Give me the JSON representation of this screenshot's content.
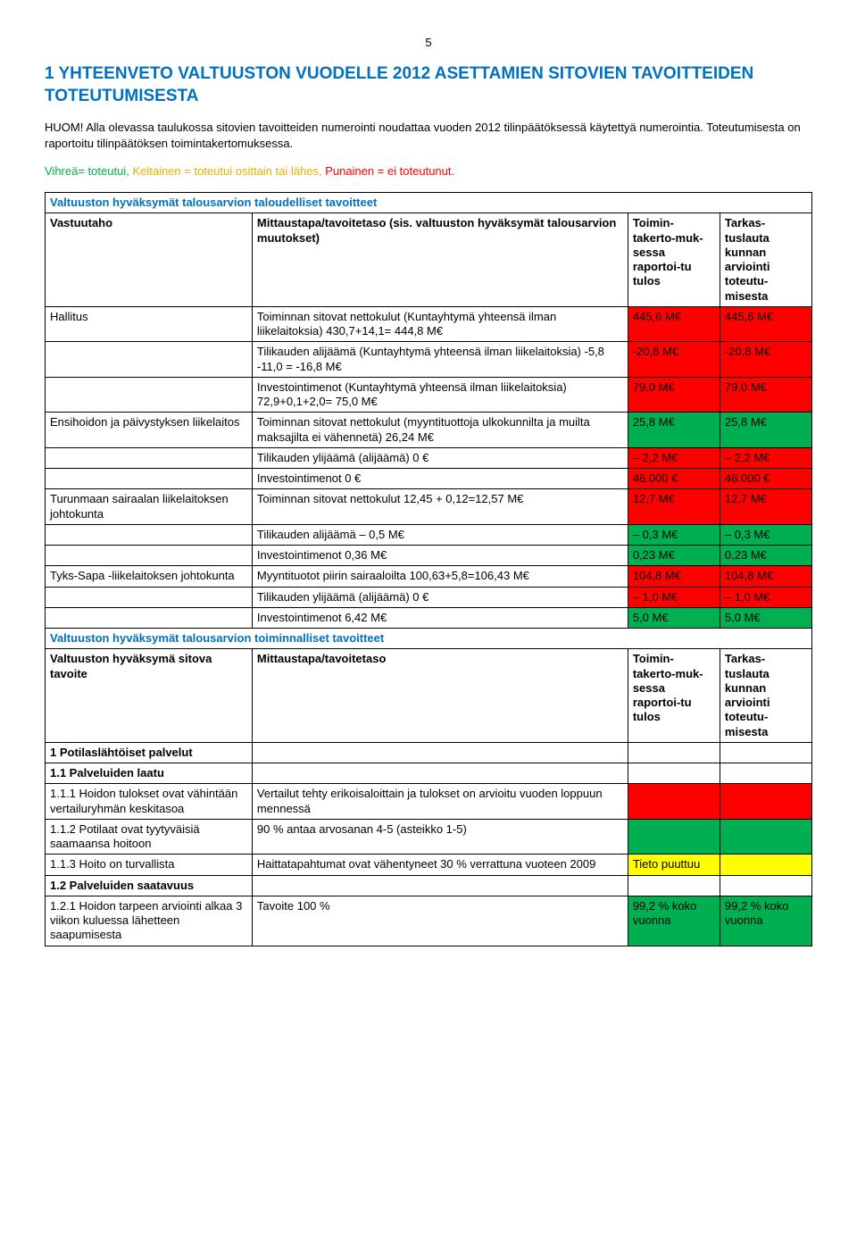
{
  "page_number": "5",
  "title": "1 YHTEENVETO VALTUUSTON VUODELLE 2012 ASETTAMIEN SITOVIEN TAVOITTEIDEN TOTEUTUMISESTA",
  "intro": "HUOM! Alla olevassa taulukossa sitovien tavoitteiden numerointi noudattaa vuoden 2012 tilinpäätöksessä käytettyä numerointia. Toteutumisesta on raportoitu tilinpäätöksen toimintakertomuksessa.",
  "legend": {
    "green_label": "Vihreä= toteutui,",
    "yellow_label": "Keltainen = toteutui osittain tai lähes,",
    "red_label": "Punainen = ei toteutunut."
  },
  "colors": {
    "heading_blue": "#0070c0",
    "red": "#ff0000",
    "green": "#00b050",
    "yellow": "#ffff00",
    "green_text": "#00b050",
    "yellow_text": "#e8b000"
  },
  "section1_title": "Valtuuston hyväksymät talousarvion taloudelliset tavoitteet",
  "header1": {
    "col1": "Vastuutaho",
    "col2": "Mittaustapa/tavoitetaso\n(sis. valtuuston hyväksymät talousarvion muutokset)",
    "col3": "Toimin-takerto-muk-sessa raportoi-tu tulos",
    "col4": "Tarkas-tuslauta kunnan arviointi toteutu-misesta"
  },
  "rows1": [
    {
      "c1": "Hallitus",
      "c2": "Toiminnan sitovat nettokulut (Kuntayhtymä yhteensä ilman liikelaitoksia) 430,7+14,1= 444,8 M€",
      "c3": "445,6 M€",
      "c4": "445,6 M€",
      "bg3": "#ff0000",
      "bg4": "#ff0000"
    },
    {
      "c1": "",
      "c2": "Tilikauden alijäämä (Kuntayhtymä yhteensä ilman liikelaitoksia) -5,8 -11,0 = -16,8 M€",
      "c3": "-20,8 M€",
      "c4": "-20,8 M€",
      "bg3": "#ff0000",
      "bg4": "#ff0000"
    },
    {
      "c1": "",
      "c2": "Investointimenot (Kuntayhtymä yhteensä ilman liikelaitoksia) 72,9+0,1+2,0= 75,0 M€",
      "c3": "79,0 M€",
      "c4": "79,0 M€",
      "bg3": "#ff0000",
      "bg4": "#ff0000"
    },
    {
      "c1": "Ensihoidon ja päivystyksen liikelaitos",
      "c2": "Toiminnan sitovat nettokulut (myyntituottoja ulkokunnilta ja muilta maksajilta ei vähennetä) 26,24 M€",
      "c3": "25,8 M€",
      "c4": "25,8 M€",
      "bg3": "#00b050",
      "bg4": "#00b050"
    },
    {
      "c1": "",
      "c2": "Tilikauden ylijäämä (alijäämä) 0 €",
      "c3": "– 2,2 M€",
      "c4": "– 2,2 M€",
      "bg3": "#ff0000",
      "bg4": "#ff0000"
    },
    {
      "c1": "",
      "c2": "Investointimenot 0 €",
      "c3": "46.000 €",
      "c4": "46.000 €",
      "bg3": "#ff0000",
      "bg4": "#ff0000"
    },
    {
      "c1": "Turunmaan sairaalan liikelaitoksen johtokunta",
      "c2": "Toiminnan sitovat nettokulut 12,45 + 0,12=12,57 M€",
      "c3": "12,7 M€",
      "c4": "12,7 M€",
      "bg3": "#ff0000",
      "bg4": "#ff0000"
    },
    {
      "c1": "",
      "c2": "Tilikauden alijäämä – 0,5 M€",
      "c3": "– 0,3 M€",
      "c4": "– 0,3 M€",
      "bg3": "#00b050",
      "bg4": "#00b050"
    },
    {
      "c1": "",
      "c2": "Investointimenot 0,36 M€",
      "c3": "0,23 M€",
      "c4": "0,23 M€",
      "bg3": "#00b050",
      "bg4": "#00b050"
    },
    {
      "c1": "Tyks-Sapa -liikelaitoksen johtokunta",
      "c2": "Myyntituotot piirin sairaaloilta 100,63+5,8=106,43 M€",
      "c3": "104,8 M€",
      "c4": "104,8 M€",
      "bg3": "#ff0000",
      "bg4": "#ff0000"
    },
    {
      "c1": "",
      "c2": "Tilikauden ylijäämä (alijäämä) 0 €",
      "c3": "– 1,0 M€",
      "c4": "– 1,0 M€",
      "bg3": "#ff0000",
      "bg4": "#ff0000"
    },
    {
      "c1": "",
      "c2": "Investointimenot 6,42 M€",
      "c3": "5,0 M€",
      "c4": "5,0 M€",
      "bg3": "#00b050",
      "bg4": "#00b050"
    }
  ],
  "section2_title": "Valtuuston hyväksymät talousarvion toiminnalliset tavoitteet",
  "header2": {
    "col1": "Valtuuston hyväksymä sitova tavoite",
    "col2": "Mittaustapa/tavoitetaso",
    "col3": "Toimin-takerto-muk-sessa raportoi-tu tulos",
    "col4": "Tarkas-tuslauta kunnan arviointi toteutu-misesta"
  },
  "rows2": [
    {
      "c1": "1 Potilaslähtöiset palvelut",
      "bold": true,
      "solo": true
    },
    {
      "c1": "1.1 Palveluiden laatu",
      "bold": true,
      "solo": true
    },
    {
      "c1": "1.1.1 Hoidon tulokset ovat vähintään vertailuryhmän keskitasoa",
      "c2": "Vertailut tehty erikoisaloittain ja tulokset on arvioitu vuoden loppuun mennessä",
      "c3": "",
      "c4": "",
      "bg3": "#ff0000",
      "bg4": "#ff0000"
    },
    {
      "c1": "1.1.2 Potilaat ovat tyytyväisiä saamaansa hoitoon",
      "c2": "90 % antaa arvosanan 4-5 (asteikko 1-5)",
      "c3": "",
      "c4": "",
      "bg3": "#00b050",
      "bg4": "#00b050"
    },
    {
      "c1": "1.1.3 Hoito on turvallista",
      "c2": "Haittatapahtumat ovat vähentyneet 30 % verrattuna vuoteen 2009",
      "c3": "Tieto puuttuu",
      "c4": "",
      "bg3": "#ffff00",
      "bg4": "#ffff00"
    },
    {
      "c1": "1.2 Palveluiden saatavuus",
      "bold": true,
      "solo": true
    },
    {
      "c1": "1.2.1 Hoidon tarpeen arviointi alkaa 3 viikon kuluessa lähetteen saapumisesta",
      "c2": "Tavoite 100 %",
      "c3": "99,2 % koko vuonna",
      "c4": "99,2 % koko vuonna",
      "bg3": "#00b050",
      "bg4": "#00b050"
    }
  ]
}
